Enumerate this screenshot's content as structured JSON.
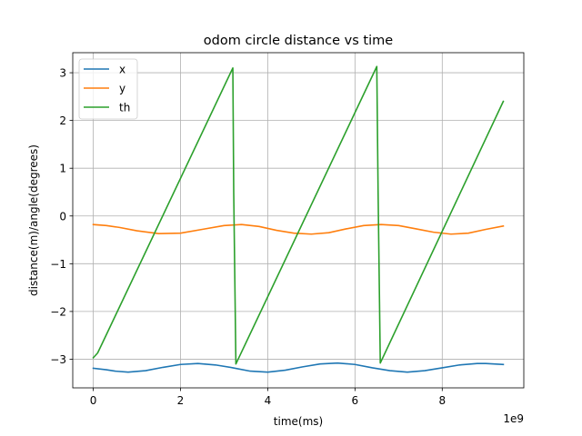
{
  "chart_data": {
    "type": "line",
    "title": "odom circle distance vs time",
    "xlabel": "time(ms)",
    "ylabel": "distance(m)/angle(degrees)",
    "x_offset_label": "1e9",
    "xlim": [
      -0.47,
      9.87
    ],
    "ylim": [
      -3.6,
      3.42
    ],
    "x_ticks": [
      0,
      2,
      4,
      6,
      8
    ],
    "x_tick_labels": [
      "0",
      "2",
      "4",
      "6",
      "8"
    ],
    "y_ticks": [
      -3,
      -2,
      -1,
      0,
      1,
      2,
      3
    ],
    "y_tick_labels": [
      "−3",
      "−2",
      "−1",
      "0",
      "1",
      "2",
      "3"
    ],
    "grid": true,
    "legend_position": "top-left",
    "series": [
      {
        "name": "x",
        "color": "#1f77b4",
        "x": [
          0,
          0.3,
          0.5,
          0.8,
          1.2,
          1.6,
          2.0,
          2.4,
          2.8,
          3.2,
          3.6,
          4.0,
          4.4,
          4.8,
          5.2,
          5.6,
          6.0,
          6.4,
          6.8,
          7.2,
          7.6,
          8.0,
          8.4,
          8.8,
          9.0,
          9.4
        ],
        "y": [
          -3.19,
          -3.22,
          -3.25,
          -3.27,
          -3.24,
          -3.17,
          -3.11,
          -3.09,
          -3.12,
          -3.18,
          -3.25,
          -3.27,
          -3.23,
          -3.16,
          -3.1,
          -3.08,
          -3.11,
          -3.18,
          -3.24,
          -3.27,
          -3.24,
          -3.18,
          -3.12,
          -3.09,
          -3.09,
          -3.11
        ]
      },
      {
        "name": "y",
        "color": "#ff7f0e",
        "x": [
          0,
          0.3,
          0.6,
          1.0,
          1.5,
          2.0,
          2.5,
          3.0,
          3.4,
          3.8,
          4.2,
          4.6,
          5.0,
          5.4,
          5.8,
          6.2,
          6.6,
          7.0,
          7.4,
          7.8,
          8.2,
          8.6,
          9.0,
          9.4
        ],
        "y": [
          -0.18,
          -0.2,
          -0.24,
          -0.31,
          -0.37,
          -0.36,
          -0.28,
          -0.2,
          -0.18,
          -0.22,
          -0.3,
          -0.36,
          -0.38,
          -0.35,
          -0.27,
          -0.2,
          -0.18,
          -0.2,
          -0.27,
          -0.34,
          -0.38,
          -0.36,
          -0.28,
          -0.21
        ]
      },
      {
        "name": "th",
        "color": "#2ca02c",
        "x": [
          0,
          0.1,
          0.2,
          3.2,
          3.22,
          3.27,
          6.5,
          6.53,
          6.58,
          9.4
        ],
        "y": [
          -2.97,
          -2.87,
          -2.68,
          3.1,
          0.5,
          -3.1,
          3.13,
          0.5,
          -3.08,
          2.4
        ]
      }
    ]
  }
}
